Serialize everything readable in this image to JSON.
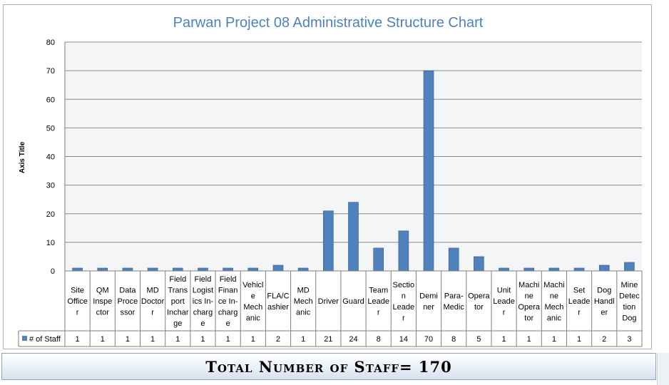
{
  "chart_data": {
    "type": "bar",
    "title": "Parwan Project 08 Administrative Structure Chart",
    "xlabel": "",
    "ylabel": "Axis Title",
    "ylim": [
      0,
      80
    ],
    "yticks": [
      0,
      10,
      20,
      30,
      40,
      50,
      60,
      70,
      80
    ],
    "grid": true,
    "legend": "data-table",
    "series_color": "#4f81bd",
    "categories": [
      [
        "Site",
        "Office",
        "r"
      ],
      [
        "QM",
        "Inspe",
        "ctor"
      ],
      [
        "Data",
        "Proce",
        "ssor"
      ],
      [
        "MD",
        "Doctor",
        "r"
      ],
      [
        "Field",
        "Trans",
        "port",
        "Inchar",
        "ge"
      ],
      [
        "Field",
        "Logist",
        "ics In-",
        "charg",
        "e"
      ],
      [
        "Field",
        "Finan",
        "ce In-",
        "charg",
        "e"
      ],
      [
        "Vehicl",
        "e",
        "Mech",
        "anic"
      ],
      [
        "FLA/C",
        "ashier"
      ],
      [
        "MD",
        "Mech",
        "anic"
      ],
      [
        "Driver"
      ],
      [
        "Guard"
      ],
      [
        "Team",
        "Leade",
        "r"
      ],
      [
        "Sectio",
        "n",
        "Leade",
        "r"
      ],
      [
        "Demi",
        "ner"
      ],
      [
        "Para-",
        "Medic"
      ],
      [
        "Opera",
        "tor"
      ],
      [
        "Unit",
        "Leade",
        "r"
      ],
      [
        "Machi",
        "ne",
        "Opera",
        "tor"
      ],
      [
        "Machi",
        "ne",
        "Mech",
        "anic"
      ],
      [
        "Set",
        "Leade",
        "r"
      ],
      [
        "Dog",
        "Handl",
        "er"
      ],
      [
        "Mine",
        "Detec",
        "tion",
        "Dog"
      ]
    ],
    "series": [
      {
        "name": "# of Staff",
        "values": [
          1,
          1,
          1,
          1,
          1,
          1,
          1,
          1,
          2,
          1,
          21,
          24,
          8,
          14,
          70,
          8,
          5,
          1,
          1,
          1,
          1,
          2,
          3
        ]
      }
    ]
  },
  "footer": {
    "total_text": "Total Number of Staff= 170"
  }
}
